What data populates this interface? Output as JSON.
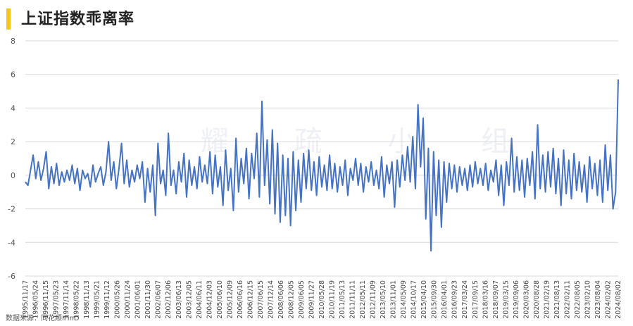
{
  "title": "上证指数乖离率",
  "source": "数据来源：同花顺iFinD",
  "watermark": "耀 疏 小 组",
  "colors": {
    "line": "#4472c4",
    "grid": "#d9d9d9",
    "accent": "#f5c518"
  },
  "chart_data": {
    "type": "line",
    "ylim": [
      -6,
      8
    ],
    "yticks": [
      -6,
      -4,
      -2,
      0,
      2,
      4,
      6,
      8
    ],
    "grid": true,
    "xlabels": [
      "1995/11/17",
      "1996/05/24",
      "1996/11/15",
      "1997/05/23",
      "1997/11/14",
      "1998/05/22",
      "1998/11/13",
      "1999/05/21",
      "1999/11/12",
      "2000/05/26",
      "2000/11/24",
      "2001/06/01",
      "2001/11/30",
      "2002/06/07",
      "2002/12/06",
      "2003/06/13",
      "2003/12/05",
      "2004/06/11",
      "2004/12/03",
      "2005/06/10",
      "2005/12/09",
      "2006/06/16",
      "2006/12/15",
      "2007/06/15",
      "2007/12/14",
      "2008/06/06",
      "2008/12/05",
      "2009/06/05",
      "2009/11/27",
      "2010/05/28",
      "2010/11/19",
      "2011/05/13",
      "2011/11/11",
      "2012/05/11",
      "2012/11/09",
      "2013/05/10",
      "2013/11/01",
      "2014/05/09",
      "2014/10/17",
      "2015/04/10",
      "2015/09/30",
      "2016/04/01",
      "2016/09/23",
      "2017/03/24",
      "2017/09/15",
      "2018/03/16",
      "2018/09/07",
      "2019/03/15",
      "2019/09/06",
      "2020/03/06",
      "2020/08/28",
      "2021/02/19",
      "2021/08/13",
      "2022/02/11",
      "2022/08/05",
      "2023/02/10",
      "2023/08/04",
      "2024/02/02",
      "2024/08/02"
    ],
    "series": [
      {
        "values": [
          -0.4,
          -0.6,
          0.3,
          1.2,
          -0.2,
          0.8,
          -0.3,
          0.4,
          1.4,
          -0.8,
          0.5,
          -0.5,
          0.7,
          -0.6,
          0.2,
          -0.4,
          0.3,
          -0.3,
          0.6,
          -0.5,
          0.4,
          -0.9,
          0.3,
          -0.2,
          0.1,
          -0.7,
          0.6,
          -0.4,
          0.1,
          0.5,
          -0.6,
          0.2,
          2.0,
          -0.3,
          0.8,
          -0.8,
          0.4,
          1.9,
          -0.5,
          0.9,
          -0.7,
          0.3,
          -0.4,
          0.6,
          -0.2,
          0.8,
          -1.6,
          0.4,
          -1.0,
          0.6,
          -2.4,
          1.9,
          -0.5,
          0.3,
          -1.2,
          2.5,
          -0.6,
          0.3,
          -1.1,
          0.8,
          -0.4,
          1.3,
          -1.3,
          0.9,
          -0.6,
          0.5,
          -0.8,
          1.1,
          -0.4,
          0.6,
          -0.5,
          1.4,
          -1.1,
          1.2,
          -0.7,
          0.5,
          -1.8,
          1.5,
          -0.9,
          0.4,
          -2.1,
          2.2,
          -1.0,
          1.0,
          -0.5,
          1.6,
          -1.4,
          1.3,
          -0.2,
          2.5,
          -1.3,
          4.4,
          -0.6,
          2.1,
          -1.7,
          2.7,
          -2.3,
          1.9,
          -2.8,
          1.2,
          -2.4,
          1.0,
          -3.0,
          1.4,
          -2.1,
          0.9,
          -1.6,
          1.3,
          -0.8,
          1.5,
          -0.9,
          0.8,
          -1.2,
          1.1,
          -0.7,
          0.6,
          -0.9,
          1.2,
          -0.8,
          0.7,
          -1.0,
          0.5,
          -0.6,
          0.9,
          -1.2,
          0.4,
          -0.3,
          1.0,
          -0.6,
          0.7,
          -1.0,
          0.5,
          -0.4,
          0.8,
          -0.6,
          0.3,
          -0.8,
          1.1,
          -1.3,
          0.6,
          -0.5,
          0.8,
          -1.9,
          0.9,
          -0.7,
          1.2,
          -0.3,
          1.7,
          -0.4,
          2.3,
          -0.8,
          4.2,
          0.5,
          3.4,
          -2.6,
          1.6,
          -4.5,
          1.4,
          -2.4,
          0.9,
          -3.1,
          0.8,
          -1.6,
          0.7,
          -0.8,
          0.6,
          -1.0,
          0.5,
          -0.6,
          0.4,
          -0.9,
          0.6,
          -0.7,
          0.8,
          -0.5,
          0.4,
          -0.6,
          0.7,
          -0.9,
          0.3,
          -0.4,
          0.9,
          -1.2,
          0.6,
          -1.8,
          0.8,
          -0.6,
          2.2,
          -1.0,
          1.1,
          -0.9,
          0.9,
          -1.3,
          1.0,
          -0.6,
          1.4,
          -1.4,
          3.0,
          -0.8,
          1.2,
          -1.0,
          1.4,
          -0.7,
          1.6,
          -1.1,
          1.0,
          -1.8,
          1.5,
          -1.1,
          0.9,
          -1.4,
          1.3,
          -0.9,
          0.8,
          -1.0,
          0.6,
          -1.6,
          1.1,
          -0.8,
          0.7,
          -1.2,
          0.9,
          -1.6,
          1.8,
          -0.9,
          1.2,
          -2.0,
          -1.0,
          5.7
        ]
      }
    ]
  }
}
